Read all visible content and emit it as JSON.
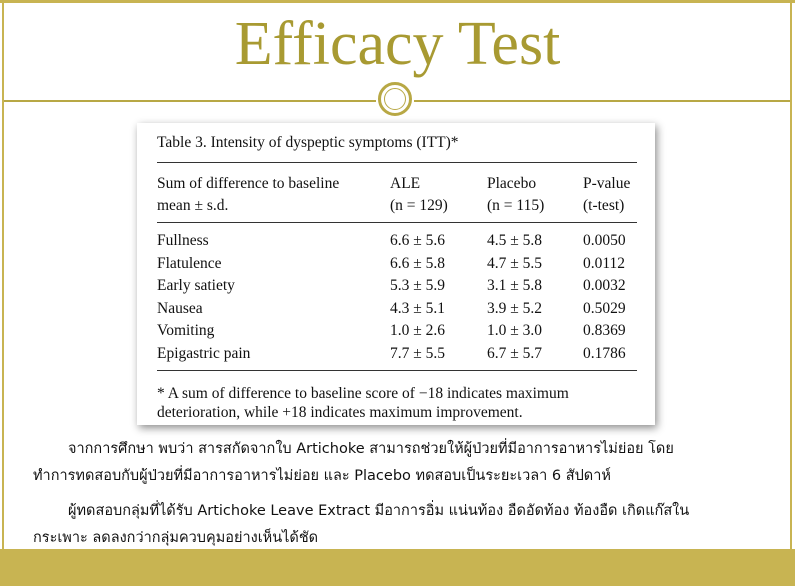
{
  "title": "Efficacy Test",
  "table": {
    "caption": "Table 3.  Intensity of dyspeptic symptoms (ITT)*",
    "header": [
      [
        "Sum of difference to baseline",
        "mean ± s.d."
      ],
      [
        "ALE",
        "(n = 129)"
      ],
      [
        "Placebo",
        "(n = 115)"
      ],
      [
        "P-value",
        "(t-test)"
      ]
    ],
    "rows": [
      [
        "Fullness",
        "6.6 ± 5.6",
        "4.5 ± 5.8",
        "0.0050"
      ],
      [
        "Flatulence",
        "6.6 ± 5.8",
        "4.7 ± 5.5",
        "0.0112"
      ],
      [
        "Early satiety",
        "5.3 ± 5.9",
        "3.1 ± 5.8",
        "0.0032"
      ],
      [
        "Nausea",
        "4.3 ± 5.1",
        "3.9 ± 5.2",
        "0.5029"
      ],
      [
        "Vomiting",
        "1.0 ± 2.6",
        "1.0 ± 3.0",
        "0.8369"
      ],
      [
        "Epigastric pain",
        "7.7 ± 5.5",
        "6.7 ± 5.7",
        "0.1786"
      ]
    ],
    "footnote": [
      "* A sum of difference to baseline score of −18 indicates maximum",
      "deterioration, while +18 indicates maximum improvement."
    ]
  },
  "paragraphs": [
    "จากการศึกษา พบว่า สารสกัดจากใบ Artichoke  สามารถช่วยให้ผู้ป่วยที่มีอาการอาหารไม่ย่อย โดย",
    "ทำการทดสอบกับผู้ป่วยที่มีอาการอาหารไม่ย่อย และ Placebo ทดสอบเป็นระยะเวลา 6 สัปดาห์",
    "ผู้ทดสอบกลุ่มที่ได้รับ Artichoke Leave Extract มีอาการอิ่ม แน่นท้อง อืดอัดท้อง ท้องอืด เกิดแก๊สใน",
    "กระเพาะ ลดลงกว่ากลุ่มควบคุมอย่างเห็นได้ชัด"
  ]
}
